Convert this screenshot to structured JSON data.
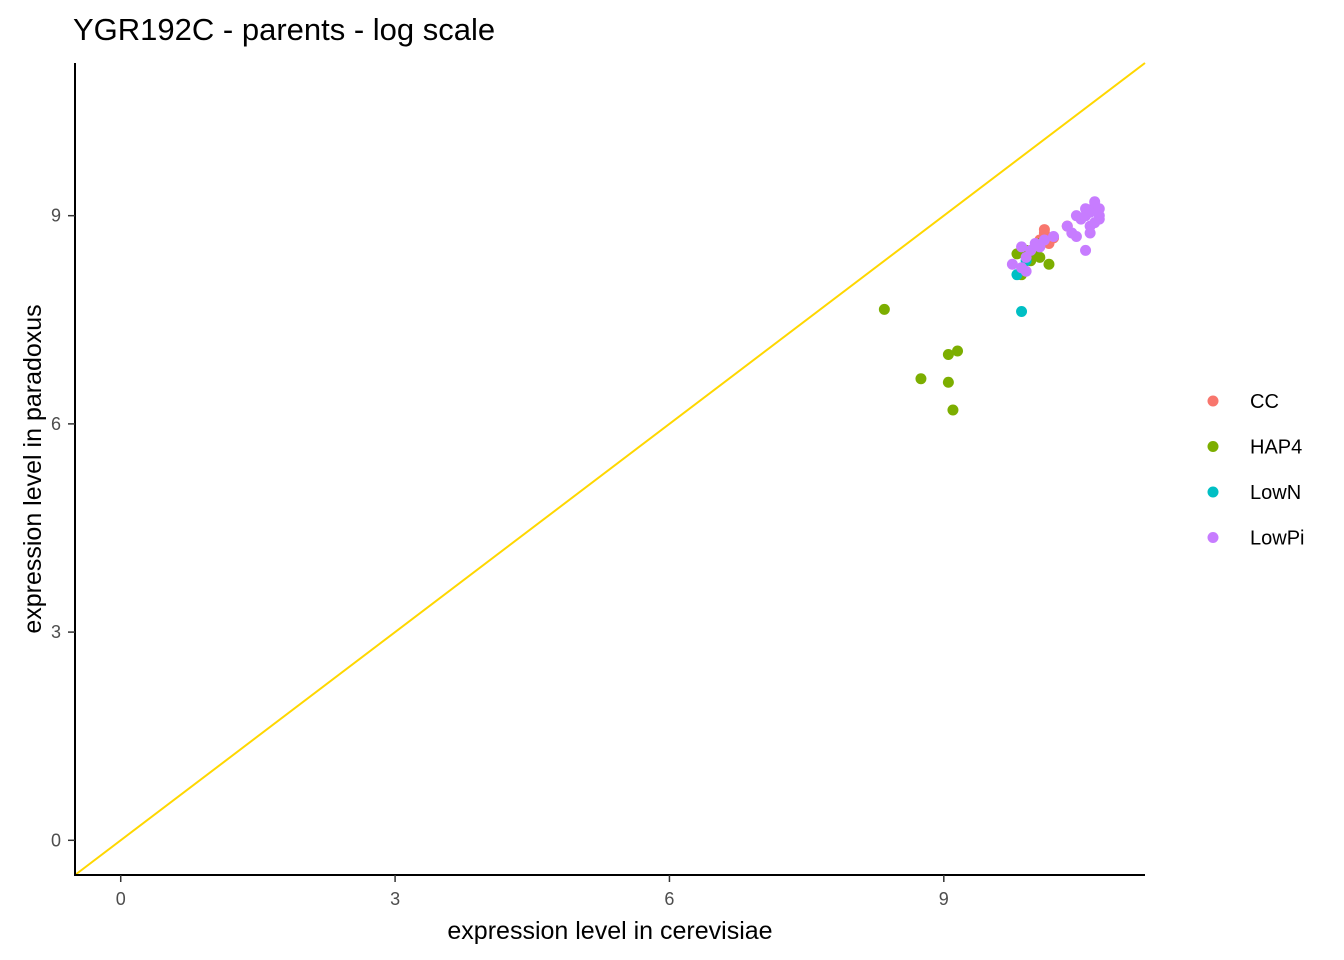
{
  "chart_data": {
    "type": "scatter",
    "title": "YGR192C - parents - log scale",
    "xlabel": "expression level in cerevisiae",
    "ylabel": "expression level in paradoxus",
    "xlim": [
      -0.5,
      11.2
    ],
    "ylim": [
      -0.5,
      11.2
    ],
    "xticks": [
      0,
      3,
      6,
      9
    ],
    "yticks": [
      0,
      3,
      6,
      9
    ],
    "grid": false,
    "legend_position": "right",
    "reference_line": {
      "type": "identity",
      "label": "y = x",
      "color": "#FFD700"
    },
    "series": [
      {
        "name": "CC",
        "color": "#F8766D",
        "points": [
          [
            10.1,
            8.75
          ],
          [
            10.2,
            8.68
          ],
          [
            10.35,
            8.85
          ],
          [
            10.05,
            8.65
          ],
          [
            10.15,
            8.6
          ],
          [
            9.95,
            8.5
          ],
          [
            10.1,
            8.8
          ]
        ]
      },
      {
        "name": "HAP4",
        "color": "#7CAE00",
        "points": [
          [
            8.35,
            7.65
          ],
          [
            8.75,
            6.65
          ],
          [
            9.05,
            7.0
          ],
          [
            9.15,
            7.05
          ],
          [
            9.05,
            6.6
          ],
          [
            9.1,
            6.2
          ],
          [
            9.85,
            8.15
          ],
          [
            9.95,
            8.35
          ],
          [
            10.05,
            8.4
          ],
          [
            10.15,
            8.3
          ],
          [
            9.8,
            8.45
          ],
          [
            10.05,
            8.6
          ],
          [
            9.9,
            8.5
          ],
          [
            10.0,
            8.45
          ]
        ]
      },
      {
        "name": "LowN",
        "color": "#00BFC4",
        "points": [
          [
            9.85,
            7.62
          ],
          [
            9.8,
            8.15
          ],
          [
            9.9,
            8.35
          ]
        ]
      },
      {
        "name": "LowPi",
        "color": "#C77CFF",
        "points": [
          [
            9.75,
            8.3
          ],
          [
            9.85,
            8.25
          ],
          [
            9.9,
            8.4
          ],
          [
            9.95,
            8.5
          ],
          [
            9.85,
            8.55
          ],
          [
            10.0,
            8.6
          ],
          [
            10.1,
            8.65
          ],
          [
            10.2,
            8.7
          ],
          [
            10.35,
            8.85
          ],
          [
            10.4,
            8.75
          ],
          [
            10.45,
            8.7
          ],
          [
            10.5,
            8.95
          ],
          [
            10.55,
            9.1
          ],
          [
            10.6,
            9.05
          ],
          [
            10.65,
            9.15
          ],
          [
            10.7,
            9.0
          ],
          [
            10.7,
            8.95
          ],
          [
            10.6,
            8.85
          ],
          [
            10.6,
            8.75
          ],
          [
            10.55,
            8.5
          ],
          [
            10.65,
            9.2
          ],
          [
            10.7,
            9.1
          ],
          [
            9.9,
            8.2
          ],
          [
            10.05,
            8.55
          ],
          [
            10.45,
            9.0
          ],
          [
            10.55,
            9.0
          ],
          [
            10.65,
            8.9
          ]
        ]
      }
    ]
  }
}
